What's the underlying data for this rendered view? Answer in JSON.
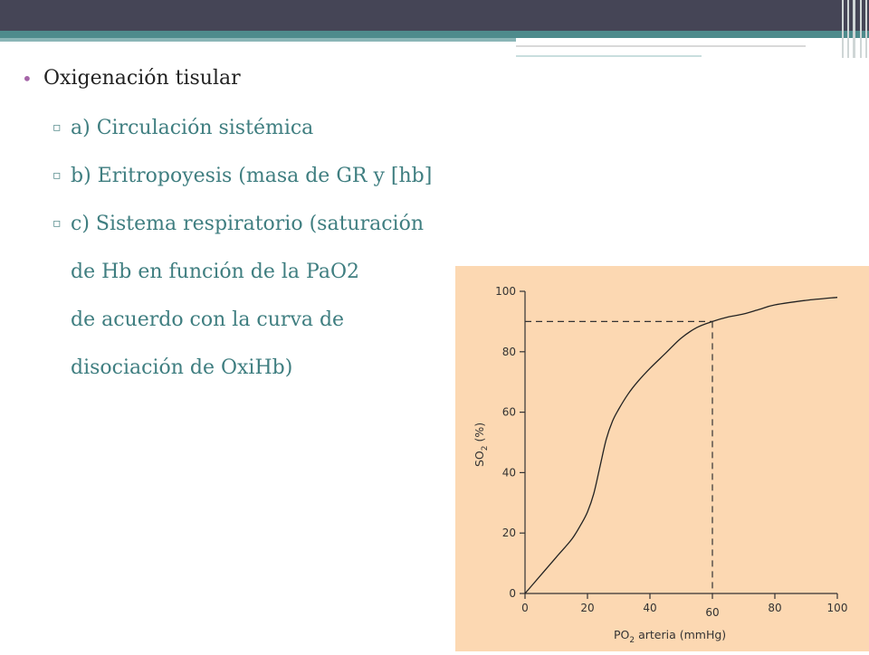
{
  "slide": {
    "bullet_main": "Oxigenación tisular",
    "sub_a": "a) Circulación sistémica",
    "sub_b": "b) Eritropoyesis (masa de GR y [hb]",
    "sub_c": "c) Sistema respiratorio (saturación",
    "sub_c_cont": [
      "de Hb en función de la PaO2",
      "de acuerdo con la curva de",
      "disociación de OxiHb)"
    ]
  },
  "colors": {
    "top_bar": "#454556",
    "accent_teal": "#4e8b8c",
    "chart_bg": "#fcd8b2",
    "bullet_purple": "#a565a8"
  },
  "chart_data": {
    "type": "line",
    "title": "",
    "xlabel_main": "PO",
    "xlabel_sub": "2",
    "xlabel_rest": " arteria (mmHg)",
    "ylabel_main": "SO",
    "ylabel_sub": "2",
    "ylabel_rest": " (%)",
    "xlim": [
      0,
      100
    ],
    "ylim": [
      0,
      100
    ],
    "x_ticks": [
      0,
      20,
      40,
      80,
      100
    ],
    "y_ticks": [
      0,
      20,
      40,
      60,
      80,
      100
    ],
    "marker_x_label": "60",
    "series": [
      {
        "x": [
          0,
          5,
          10,
          15,
          18,
          20,
          22,
          24,
          26,
          28,
          30,
          33,
          36,
          40,
          45,
          50,
          55,
          60,
          65,
          70,
          75,
          80,
          90,
          100
        ],
        "y": [
          0,
          6,
          12,
          18,
          23,
          27,
          33,
          42,
          51,
          57,
          61,
          66,
          70,
          74.5,
          79.5,
          84.5,
          88,
          90,
          91.5,
          92.5,
          94,
          95.5,
          97,
          98
        ]
      }
    ],
    "reference": {
      "x": 60,
      "y": 90
    },
    "grid": false,
    "legend": "none"
  }
}
